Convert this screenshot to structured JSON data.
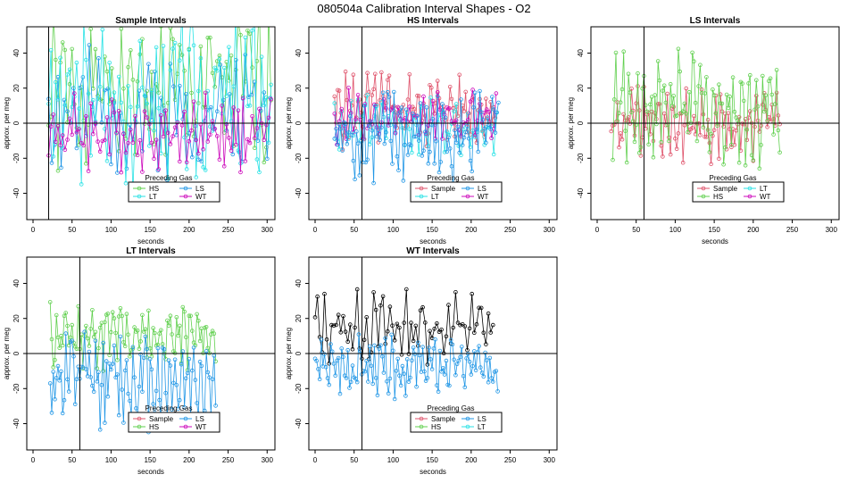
{
  "figure": {
    "title": "080504a   Calibration Interval Shapes - O2"
  },
  "colors": {
    "Sample": "#df536b",
    "HS": "#61d04f",
    "LS": "#2297e6",
    "LT": "#28e2e5",
    "WT": "#cd0bbc",
    "black": "#000000"
  },
  "chart_data": [
    {
      "type": "line",
      "title": "Sample Intervals",
      "xlabel": "seconds",
      "ylabel": "approx. per meg",
      "xlim": [
        -8,
        310
      ],
      "ylim": [
        -55,
        55
      ],
      "xticks": [
        0,
        50,
        100,
        150,
        200,
        250,
        300
      ],
      "yticks": [
        -40,
        -20,
        0,
        20,
        40
      ],
      "vline": 20,
      "hline": 0,
      "legend": {
        "title": "Preceding Gas",
        "position": "bottom-right",
        "ncol": 2,
        "entries": [
          "HS",
          "LS",
          "LT",
          "WT"
        ]
      },
      "series": [
        {
          "name": "HS",
          "color": "#61d04f",
          "start": 20,
          "end": 305,
          "step": 3,
          "center": 15,
          "amp": 32,
          "freq": 0.5,
          "drift": 0.2,
          "seed": 1
        },
        {
          "name": "LS",
          "color": "#2297e6",
          "start": 20,
          "end": 305,
          "step": 4,
          "center": 5,
          "amp": 25,
          "freq": 0.6,
          "drift": 0.1,
          "seed": 2
        },
        {
          "name": "LT",
          "color": "#28e2e5",
          "start": 20,
          "end": 305,
          "step": 3,
          "center": 10,
          "amp": 35,
          "freq": 0.55,
          "drift": 0.2,
          "seed": 3
        },
        {
          "name": "WT",
          "color": "#cd0bbc",
          "start": 20,
          "end": 305,
          "step": 3,
          "center": -5,
          "amp": 15,
          "freq": 0.9,
          "drift": 0,
          "seed": 4
        }
      ]
    },
    {
      "type": "line",
      "title": "HS Intervals",
      "xlabel": "seconds",
      "ylabel": "approx. per meg",
      "xlim": [
        -8,
        310
      ],
      "ylim": [
        -55,
        55
      ],
      "xticks": [
        0,
        50,
        100,
        150,
        200,
        250,
        300
      ],
      "yticks": [
        -40,
        -20,
        0,
        20,
        40
      ],
      "vline": 60,
      "hline": 0,
      "legend": {
        "title": "Preceding Gas",
        "position": "bottom-right",
        "ncol": 2,
        "entries": [
          "Sample",
          "LS",
          "LT",
          "WT"
        ]
      },
      "series": [
        {
          "name": "Sample",
          "color": "#df536b",
          "start": 25,
          "end": 232,
          "step": 2,
          "center": 8,
          "amp": 15,
          "freq": 0.7,
          "drift": 0,
          "seed": 5
        },
        {
          "name": "LT",
          "color": "#28e2e5",
          "start": 25,
          "end": 232,
          "step": 3,
          "center": 0,
          "amp": 12,
          "freq": 0.6,
          "drift": 0,
          "seed": 6
        },
        {
          "name": "WT",
          "color": "#cd0bbc",
          "start": 25,
          "end": 232,
          "step": 3,
          "center": 4,
          "amp": 12,
          "freq": 0.6,
          "drift": 0,
          "seed": 7
        },
        {
          "name": "LS",
          "color": "#2297e6",
          "start": 25,
          "end": 235,
          "step": 2,
          "center": -8,
          "amp": 20,
          "freq": 0.8,
          "drift": 0,
          "seed": 8
        }
      ]
    },
    {
      "type": "line",
      "title": "LS Intervals",
      "xlabel": "seconds",
      "ylabel": "approx. per meg",
      "xlim": [
        -8,
        310
      ],
      "ylim": [
        -55,
        55
      ],
      "xticks": [
        0,
        50,
        100,
        150,
        200,
        250,
        300
      ],
      "yticks": [
        -40,
        -20,
        0,
        20,
        40
      ],
      "vline": 60,
      "hline": 0,
      "legend": {
        "title": "Preceding Gas",
        "position": "bottom-right",
        "ncol": 2,
        "entries": [
          "Sample",
          "LT",
          "HS",
          "WT"
        ]
      },
      "series": [
        {
          "name": "Sample",
          "color": "#df536b",
          "start": 18,
          "end": 235,
          "step": 2,
          "center": 0,
          "amp": 15,
          "freq": 0.7,
          "drift": 0,
          "seed": 9
        },
        {
          "name": "HS",
          "color": "#61d04f",
          "start": 20,
          "end": 235,
          "step": 2,
          "center": 10,
          "amp": 22,
          "freq": 0.7,
          "drift": -0.1,
          "seed": 10
        }
      ]
    },
    {
      "type": "line",
      "title": "LT Intervals",
      "xlabel": "seconds",
      "ylabel": "approx. per meg",
      "xlim": [
        -8,
        310
      ],
      "ylim": [
        -55,
        55
      ],
      "xticks": [
        0,
        50,
        100,
        150,
        200,
        250,
        300
      ],
      "yticks": [
        -40,
        -20,
        0,
        20,
        40
      ],
      "vline": 60,
      "hline": 0,
      "legend": {
        "title": "Preceding Gas",
        "position": "bottom-right",
        "ncol": 2,
        "entries": [
          "Sample",
          "LS",
          "HS",
          "WT"
        ]
      },
      "series": [
        {
          "name": "HS",
          "color": "#61d04f",
          "start": 22,
          "end": 235,
          "step": 2,
          "center": 10,
          "amp": 14,
          "freq": 0.7,
          "drift": 0,
          "seed": 11
        },
        {
          "name": "LS",
          "color": "#2297e6",
          "start": 22,
          "end": 235,
          "step": 2,
          "center": -15,
          "amp": 20,
          "freq": 0.8,
          "drift": 0.05,
          "seed": 12
        }
      ]
    },
    {
      "type": "line",
      "title": "WT Intervals",
      "xlabel": "seconds",
      "ylabel": "approx. per meg",
      "xlim": [
        -8,
        310
      ],
      "ylim": [
        -55,
        55
      ],
      "xticks": [
        0,
        50,
        100,
        150,
        200,
        250,
        300
      ],
      "yticks": [
        -40,
        -20,
        0,
        20,
        40
      ],
      "vline": 60,
      "hline": 0,
      "legend": {
        "title": "Preceding Gas",
        "position": "bottom-right",
        "ncol": 2,
        "entries": [
          "Sample",
          "LS",
          "HS",
          "LT"
        ]
      },
      "series": [
        {
          "name": "WT",
          "color": "#000000",
          "start": 0,
          "end": 230,
          "step": 3,
          "center": 15,
          "amp": 14,
          "freq": 0.6,
          "drift": 0,
          "seed": 13
        },
        {
          "name": "LS",
          "color": "#2297e6",
          "start": 0,
          "end": 235,
          "step": 2,
          "center": -8,
          "amp": 12,
          "freq": 0.9,
          "drift": 0,
          "seed": 14
        }
      ]
    }
  ]
}
